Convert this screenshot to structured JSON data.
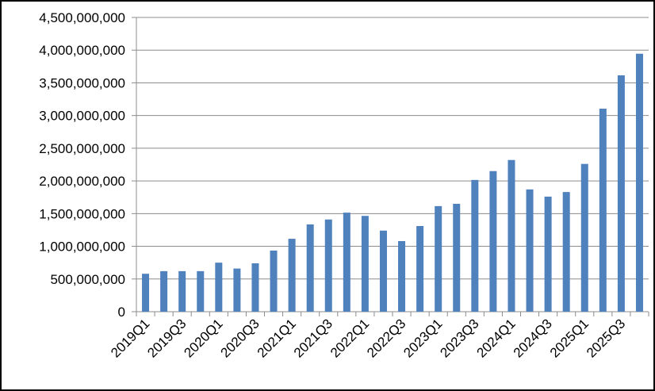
{
  "chart_data": {
    "type": "bar",
    "categories": [
      "2019Q1",
      null,
      "2019Q3",
      null,
      "2020Q1",
      null,
      "2020Q3",
      null,
      "2021Q1",
      null,
      "2021Q3",
      null,
      "2022Q1",
      null,
      "2022Q3",
      null,
      "2023Q1",
      null,
      "2023Q3",
      null,
      "2024Q1",
      null,
      "2024Q3",
      null,
      "2025Q1",
      null,
      "2025Q3",
      null
    ],
    "values": [
      580000000,
      620000000,
      620000000,
      620000000,
      750000000,
      660000000,
      740000000,
      935000000,
      1115000000,
      1335000000,
      1410000000,
      1515000000,
      1465000000,
      1240000000,
      1080000000,
      1310000000,
      1615000000,
      1650000000,
      2015000000,
      2150000000,
      2320000000,
      1870000000,
      1760000000,
      1830000000,
      2260000000,
      3105000000,
      3615000000,
      3945000000
    ],
    "color": "#4f81bd",
    "ylim": [
      0,
      4500000000
    ],
    "yticks": [
      0,
      {
        "value": 500000000,
        "label": "500,000,000"
      },
      {
        "value": 1000000000,
        "label": "1,000,000,000"
      },
      {
        "value": 1500000000,
        "label": "1,500,000,000"
      },
      {
        "value": 2000000000,
        "label": "2,000,000,000"
      },
      {
        "value": 2500000000,
        "label": "2,500,000,000"
      },
      {
        "value": 3000000000,
        "label": "3,000,000,000"
      },
      {
        "value": 3500000000,
        "label": "3,500,000,000"
      },
      {
        "value": 4000000000,
        "label": "4,000,000,000"
      },
      {
        "value": 4500000000,
        "label": "4,500,000,000"
      }
    ],
    "grid": true
  }
}
